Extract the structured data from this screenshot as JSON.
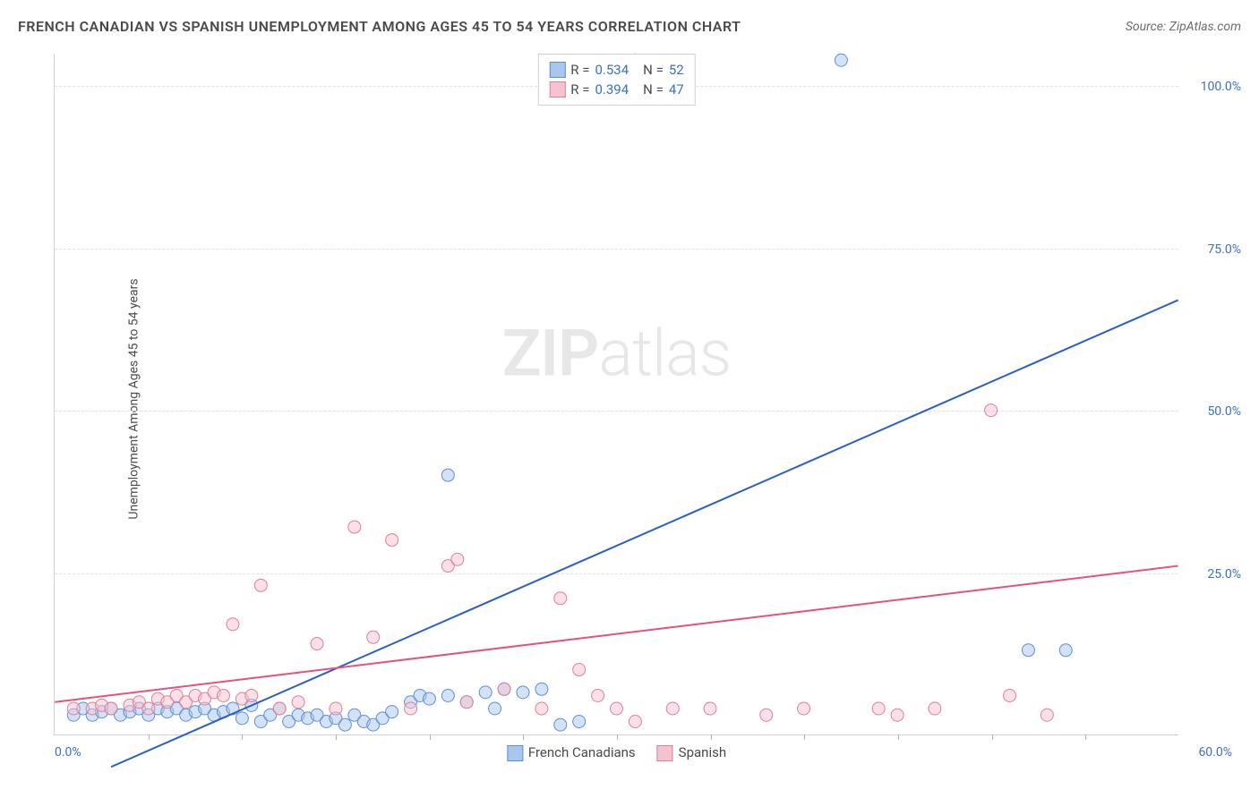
{
  "title": "FRENCH CANADIAN VS SPANISH UNEMPLOYMENT AMONG AGES 45 TO 54 YEARS CORRELATION CHART",
  "source": "Source: ZipAtlas.com",
  "ylabel": "Unemployment Among Ages 45 to 54 years",
  "watermark_a": "ZIP",
  "watermark_b": "atlas",
  "chart": {
    "type": "scatter",
    "xlim": [
      0,
      60
    ],
    "ylim": [
      0,
      105
    ],
    "x_origin_label": "0.0%",
    "x_max_label": "60.0%",
    "xticks_minor": [
      5,
      10,
      15,
      20,
      25,
      30,
      35,
      40,
      45,
      50,
      55
    ],
    "yticks": [
      {
        "v": 25,
        "label": "25.0%"
      },
      {
        "v": 50,
        "label": "50.0%"
      },
      {
        "v": 75,
        "label": "75.0%"
      },
      {
        "v": 100,
        "label": "100.0%"
      }
    ],
    "grid_color": "#e0e0e0",
    "background_color": "#ffffff",
    "series": [
      {
        "name": "French Canadians",
        "fill": "#a9c6ec",
        "stroke": "#5b8fd6",
        "line_color": "#2a5fc7",
        "R": "0.534",
        "N": "52",
        "trend": {
          "x1": 3,
          "y1": -5,
          "x2": 60,
          "y2": 67
        },
        "points": [
          [
            1,
            3
          ],
          [
            1.5,
            4
          ],
          [
            2,
            3
          ],
          [
            2.5,
            3.5
          ],
          [
            3,
            4
          ],
          [
            3.5,
            3
          ],
          [
            4,
            3.5
          ],
          [
            4.5,
            4
          ],
          [
            5,
            3
          ],
          [
            5.5,
            4
          ],
          [
            6,
            3.5
          ],
          [
            6.5,
            4
          ],
          [
            7,
            3
          ],
          [
            7.5,
            3.5
          ],
          [
            8,
            4
          ],
          [
            8.5,
            3
          ],
          [
            9,
            3.5
          ],
          [
            9.5,
            4
          ],
          [
            10,
            2.5
          ],
          [
            10.5,
            4.5
          ],
          [
            11,
            2
          ],
          [
            11.5,
            3
          ],
          [
            12,
            4
          ],
          [
            12.5,
            2
          ],
          [
            13,
            3
          ],
          [
            13.5,
            2.5
          ],
          [
            14,
            3
          ],
          [
            14.5,
            2
          ],
          [
            15,
            2.5
          ],
          [
            15.5,
            1.5
          ],
          [
            16,
            3
          ],
          [
            16.5,
            2
          ],
          [
            17,
            1.5
          ],
          [
            17.5,
            2.5
          ],
          [
            18,
            3.5
          ],
          [
            19,
            5
          ],
          [
            19.5,
            6
          ],
          [
            20,
            5.5
          ],
          [
            21,
            6
          ],
          [
            21,
            40
          ],
          [
            22,
            5
          ],
          [
            23,
            6.5
          ],
          [
            23.5,
            4
          ],
          [
            24,
            7
          ],
          [
            25,
            6.5
          ],
          [
            26,
            7
          ],
          [
            27,
            1.5
          ],
          [
            28,
            2
          ],
          [
            31,
            104
          ],
          [
            42,
            104
          ],
          [
            52,
            13
          ],
          [
            54,
            13
          ]
        ]
      },
      {
        "name": "Spanish",
        "fill": "#f4c3cf",
        "stroke": "#e07d9a",
        "line_color": "#e5537a",
        "R": "0.394",
        "N": "47",
        "trend": {
          "x1": 0,
          "y1": 5,
          "x2": 60,
          "y2": 26
        },
        "points": [
          [
            1,
            4
          ],
          [
            2,
            4
          ],
          [
            2.5,
            4.5
          ],
          [
            3,
            4
          ],
          [
            4,
            4.5
          ],
          [
            4.5,
            5
          ],
          [
            5,
            4
          ],
          [
            5.5,
            5.5
          ],
          [
            6,
            5
          ],
          [
            6.5,
            6
          ],
          [
            7,
            5
          ],
          [
            7.5,
            6
          ],
          [
            8,
            5.5
          ],
          [
            8.5,
            6.5
          ],
          [
            9,
            6
          ],
          [
            9.5,
            17
          ],
          [
            10,
            5.5
          ],
          [
            10.5,
            6
          ],
          [
            11,
            23
          ],
          [
            12,
            4
          ],
          [
            13,
            5
          ],
          [
            14,
            14
          ],
          [
            15,
            4
          ],
          [
            16,
            32
          ],
          [
            17,
            15
          ],
          [
            18,
            30
          ],
          [
            19,
            4
          ],
          [
            21,
            26
          ],
          [
            21.5,
            27
          ],
          [
            22,
            5
          ],
          [
            24,
            7
          ],
          [
            26,
            4
          ],
          [
            27,
            21
          ],
          [
            28,
            10
          ],
          [
            29,
            6
          ],
          [
            30,
            4
          ],
          [
            31,
            2
          ],
          [
            33,
            4
          ],
          [
            35,
            4
          ],
          [
            38,
            3
          ],
          [
            40,
            4
          ],
          [
            44,
            4
          ],
          [
            45,
            3
          ],
          [
            47,
            4
          ],
          [
            50,
            50
          ],
          [
            51,
            6
          ],
          [
            53,
            3
          ]
        ]
      }
    ],
    "marker_radius": 7,
    "marker_fill_opacity": 0.5,
    "line_width": 2
  },
  "legend": {
    "series1_label": "French Canadians",
    "series2_label": "Spanish"
  }
}
